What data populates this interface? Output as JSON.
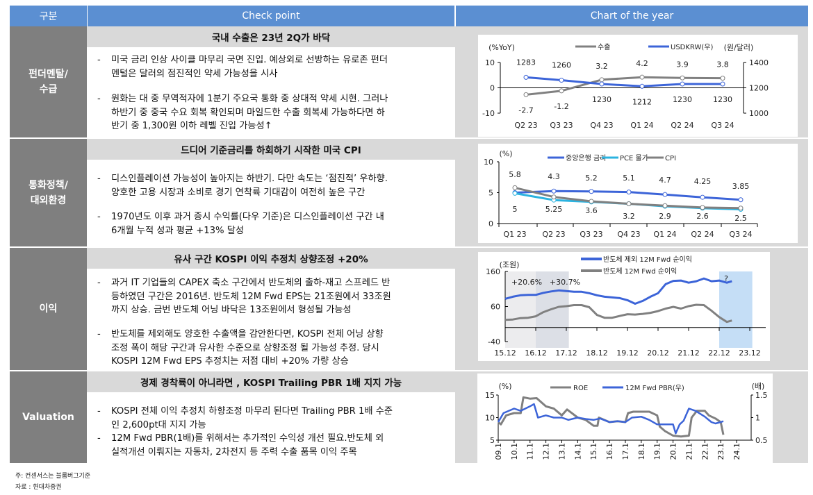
{
  "header": {
    "col1": "구분",
    "col2": "Check point",
    "col3": "Chart of the year"
  },
  "rows": [
    {
      "category_lines": [
        "펀더멘탈/",
        "수급"
      ],
      "headline": "국내 수출은 23년 2Q가  바닥",
      "bullets": [
        {
          "lines": [
            "미국 금리 인상 사이클 마무리 국면 진입. 예상외로 선방하는 유로존 펀더",
            "멘털은 달러의 점진적인 약세 가능성을 시사"
          ]
        },
        {
          "lines": [
            "원화는 대 중 무역적자에 1분기 주요국 통화 중 상대적 약세 시현.  그러나",
            "하반기 중 중국 수요 회복 확인되며 마일드한 수출 회복세 가능하다면 하",
            "반기 중 1,300원 이하 레벨 진입 가능성↑"
          ]
        }
      ]
    },
    {
      "category_lines": [
        "통화정책/",
        "대외환경"
      ],
      "headline": "드디어 기준금리를 하회하기 시작한 미국 CPI",
      "bullets": [
        {
          "lines": [
            "디스인플레이션 가능성이 높아지는 하반기. 다만 속도는 ‘점진적’ 우하향.",
            "양호한 고용 시장과 소비로 경기 연착륙 기대감이 여전히 높은 구간"
          ]
        },
        {
          "lines": [
            "1970년도 이후 과거 증시 수익률(다우 기준)은 디스인플레이션 구간 내",
            "6개월 누적 성과 평균 +13% 달성"
          ]
        }
      ]
    },
    {
      "category_lines": [
        "이익"
      ],
      "headline": "유사 구간 KOSPI 이익 추정치 상향조정 +20%",
      "bullets": [
        {
          "lines": [
            "과거 IT 기업들의 CAPEX 축소 구간에서 반도체의 출하-재고 스프레드 반",
            "등하였던 구간은 2016년. 반도체 12M Fwd EPS는 21조원에서 33조원",
            "까지 상승. 금번 반도체 어닝 바닥은 13조원에서 형성될 가능성"
          ]
        },
        {
          "lines": [
            "반도체를 제외해도 양호한 수출액을 감안한다면, KOSPI 전체 어닝 상향",
            "조정 폭이 해당 구간과 유사한 수준으로 상향조정 될 가능성 추정. 당시",
            "KOSPI 12M Fwd EPS 추정치는 저점 대비 +20% 가량 상승"
          ]
        }
      ]
    },
    {
      "category_lines": [
        "Valuation"
      ],
      "headline": "경제 경착륙이 아니라면 , KOSPI Trailing PBR 1배 지지 가능",
      "bullets": [
        {
          "lines": [
            "KOSPI 전체 이익 추정치 하향조정 마무리 된다면 Trailing PBR 1배 수준",
            "인 2,600pt대 지지 가능"
          ]
        },
        {
          "lines": [
            "12M Fwd PBR(1배)를 위해서는 추가적인 수익성 개선 필요.반도체 외",
            "실적개선 이뤄지는 자동차, 2차전지 등 주력 수출 품목 이익 주목"
          ]
        }
      ]
    }
  ],
  "bullet_marker": "-",
  "footnotes": [
    "주: 컨센서스는 블룸버그기준",
    "자료 : 현대차증권"
  ],
  "colors": {
    "header": "#5b8fd2",
    "category": "#7f7f7f",
    "subheader": "#d9d9d9",
    "blue": "#3c64d8",
    "gray": "#7f7f7f",
    "cyan": "#2bb3e0"
  },
  "chart_data": [
    {
      "type": "line",
      "left_unit": "(%YoY)",
      "right_unit": "(원/달러)",
      "categories": [
        "Q2 23",
        "Q3 23",
        "Q4 23",
        "Q1 24",
        "Q2 24",
        "Q3 24"
      ],
      "ylim": [
        -10,
        10
      ],
      "yticks": [
        10,
        0,
        -10
      ],
      "y2lim": [
        1000,
        1400
      ],
      "y2ticks": [
        1400,
        1200,
        1000
      ],
      "series": [
        {
          "name": "수출",
          "axis": "left",
          "color": "#808080",
          "values": [
            -2.7,
            -1.2,
            3.2,
            4.2,
            3.9,
            3.8
          ]
        },
        {
          "name": "USDKRW(우)",
          "axis": "right",
          "color": "#3c64d8",
          "values": [
            1283,
            1260,
            1230,
            1212,
            1230,
            1230
          ]
        }
      ]
    },
    {
      "type": "line",
      "unit": "(%)",
      "categories": [
        "Q1 23",
        "Q2 23",
        "Q3 23",
        "Q4 23",
        "Q1 24",
        "Q2 24",
        "Q3 24"
      ],
      "ylim": [
        0,
        10
      ],
      "yticks": [
        10,
        5,
        0
      ],
      "series": [
        {
          "name": "중앙은행 금리",
          "color": "#3c64d8",
          "values": [
            5,
            5.25,
            5.2,
            5.1,
            4.7,
            4.25,
            3.85
          ]
        },
        {
          "name": "PCE 물가",
          "color": "#2bb3e0",
          "values": [
            4.9,
            3.8,
            3.5,
            3.2,
            2.8,
            2.5,
            2.3
          ]
        },
        {
          "name": "CPI",
          "color": "#808080",
          "values": [
            5.8,
            4.3,
            3.6,
            3.2,
            2.9,
            2.6,
            2.5
          ]
        }
      ]
    },
    {
      "type": "line",
      "unit": "(조원)",
      "ylim": [
        -40,
        160
      ],
      "yticks": [
        160,
        60,
        -40
      ],
      "xticks": [
        "15.12",
        "16.12",
        "17.12",
        "18.12",
        "19.12",
        "20.12",
        "21.12",
        "22.12",
        "23.12"
      ],
      "annotations": [
        "+20.6%",
        "+30.7%",
        "?"
      ],
      "shaded_periods": [
        [
          "2015-12",
          "2016-12"
        ],
        [
          "2016-12",
          "2018-01"
        ],
        [
          "2022-12",
          "2024-01"
        ]
      ],
      "x": [
        "2015-12",
        "2016-03",
        "2016-06",
        "2016-09",
        "2016-12",
        "2017-03",
        "2017-06",
        "2017-09",
        "2017-12",
        "2018-03",
        "2018-06",
        "2018-09",
        "2018-12",
        "2019-03",
        "2019-06",
        "2019-09",
        "2019-12",
        "2020-03",
        "2020-06",
        "2020-09",
        "2020-12",
        "2021-03",
        "2021-06",
        "2021-09",
        "2021-12",
        "2022-03",
        "2022-06",
        "2022-09",
        "2022-12",
        "2023-03",
        "2023-05"
      ],
      "series": [
        {
          "name": "반도체 제외 12M Fwd 순이익",
          "color": "#3c64d8",
          "values": [
            82,
            88,
            92,
            93,
            93,
            99,
            103,
            106,
            104,
            102,
            102,
            98,
            92,
            88,
            86,
            84,
            78,
            68,
            76,
            88,
            98,
            124,
            133,
            134,
            128,
            132,
            140,
            132,
            134,
            128,
            132
          ]
        },
        {
          "name": "반도체 12M Fwd 순이익",
          "color": "#808080",
          "values": [
            22,
            23,
            27,
            28,
            32,
            44,
            52,
            59,
            61,
            64,
            64,
            58,
            36,
            28,
            28,
            33,
            38,
            37,
            39,
            42,
            47,
            54,
            59,
            54,
            61,
            65,
            64,
            48,
            30,
            16,
            20
          ]
        }
      ]
    },
    {
      "type": "line",
      "left_unit": "(%)",
      "right_unit": "(배)",
      "ylim": [
        5,
        15
      ],
      "yticks": [
        15,
        10,
        5
      ],
      "y2lim": [
        0.5,
        1.5
      ],
      "y2ticks": [
        1.5,
        1,
        0.5
      ],
      "xticks": [
        "09.1",
        "10.1",
        "11.1",
        "12.1",
        "13.1",
        "14.1",
        "15.1",
        "16.1",
        "17.1",
        "18.1",
        "19.1",
        "20.1",
        "21.1",
        "22.1",
        "23.1",
        "24.1"
      ],
      "series": [
        {
          "name": "ROE",
          "axis": "left",
          "color": "#808080",
          "x": [
            "2009-01",
            "2009-03",
            "2009-07",
            "2010-01",
            "2010-06",
            "2010-08",
            "2011-01",
            "2011-06",
            "2012-01",
            "2012-07",
            "2013-01",
            "2013-05",
            "2014-01",
            "2014-07",
            "2015-01",
            "2015-04",
            "2015-05",
            "2016-01",
            "2016-07",
            "2017-01",
            "2017-03",
            "2017-07",
            "2018-01",
            "2018-07",
            "2019-01",
            "2019-03",
            "2019-07",
            "2020-01",
            "2020-07",
            "2021-01",
            "2021-03",
            "2021-07",
            "2022-01",
            "2022-04",
            "2022-09",
            "2023-01",
            "2023-03"
          ],
          "values": [
            9,
            8.5,
            10.5,
            11,
            11,
            14.5,
            14.2,
            14.3,
            12.5,
            12,
            10.5,
            11.8,
            10,
            9.5,
            8.2,
            8.2,
            10,
            9,
            9.2,
            9,
            11,
            11.3,
            11.3,
            11.3,
            10.5,
            8,
            7,
            6,
            5.8,
            6,
            10,
            11.5,
            11.5,
            10.5,
            9.8,
            9,
            6.2
          ]
        },
        {
          "name": "12M Fwd PBR(우)",
          "axis": "right",
          "color": "#3c64d8",
          "x": [
            "2009-01",
            "2009-05",
            "2010-01",
            "2010-06",
            "2011-01",
            "2011-04",
            "2011-07",
            "2012-01",
            "2012-07",
            "2013-01",
            "2013-06",
            "2014-01",
            "2014-07",
            "2015-01",
            "2015-06",
            "2016-01",
            "2016-07",
            "2017-01",
            "2017-06",
            "2018-01",
            "2018-07",
            "2019-01",
            "2019-06",
            "2020-01",
            "2020-03",
            "2020-06",
            "2020-09",
            "2021-01",
            "2021-06",
            "2022-01",
            "2022-06",
            "2022-09",
            "2023-01",
            "2023-03"
          ],
          "values": [
            0.9,
            1.1,
            1.2,
            1.15,
            1.25,
            1.3,
            1.0,
            1.05,
            1.0,
            1.0,
            0.95,
            1.0,
            0.97,
            0.95,
            0.98,
            0.9,
            0.92,
            0.9,
            1.0,
            1.02,
            0.95,
            0.85,
            0.85,
            0.85,
            0.65,
            0.85,
            0.93,
            1.2,
            1.15,
            1.02,
            0.9,
            0.87,
            0.9,
            0.92
          ]
        }
      ]
    }
  ]
}
